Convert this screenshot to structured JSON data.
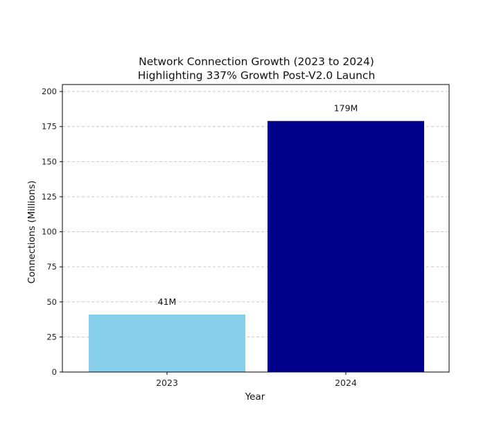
{
  "chart_data": {
    "type": "bar",
    "title": "Network Connection Growth (2023 to 2024)",
    "subtitle": "Highlighting 337% Growth Post-V2.0 Launch",
    "xlabel": "Year",
    "ylabel": "Connections (Millions)",
    "categories": [
      "2023",
      "2024"
    ],
    "values": [
      41,
      179
    ],
    "data_labels": [
      "41M",
      "179M"
    ],
    "bar_colors": [
      "#87ceeb",
      "#00008b"
    ],
    "ylim": [
      0,
      205
    ],
    "yticks": [
      0,
      25,
      50,
      75,
      100,
      125,
      150,
      175,
      200
    ],
    "grid": "horizontal dashed",
    "legend": "none"
  }
}
